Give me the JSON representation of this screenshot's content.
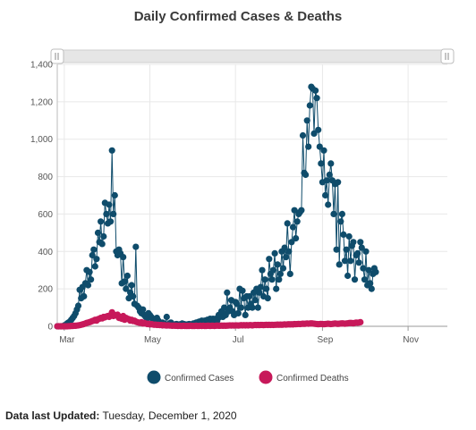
{
  "footer": {
    "label": "Data last Updated:",
    "value": "Tuesday, December 1, 2020"
  },
  "colors": {
    "cases": "#0f4c6b",
    "deaths": "#c7195a",
    "slider": "#e6e6e6",
    "grid": "#e8e8e8"
  },
  "chart_data": {
    "type": "line",
    "title": "Daily Confirmed Cases & Deaths",
    "xlabel": "",
    "ylabel": "",
    "x_start": "2020-02-25",
    "xlim": [
      "2020-02-25",
      "2020-11-29"
    ],
    "ylim": [
      0,
      1400
    ],
    "y_ticks": [
      0,
      200,
      400,
      600,
      800,
      1000,
      1200,
      1400
    ],
    "y_tick_labels": [
      "0",
      "200",
      "400",
      "600",
      "800",
      "1,000",
      "1,200",
      "1,400"
    ],
    "x_ticks": [
      {
        "date": "2020-03-01",
        "label": "Mar"
      },
      {
        "date": "2020-05-01",
        "label": "May"
      },
      {
        "date": "2020-07-01",
        "label": "Jul"
      },
      {
        "date": "2020-09-01",
        "label": "Sep"
      },
      {
        "date": "2020-11-01",
        "label": "Nov"
      }
    ],
    "grid": true,
    "legend_position": "bottom",
    "range_slider": true,
    "series": [
      {
        "name": "Confirmed Cases",
        "values": [
          0,
          0,
          0,
          0,
          0,
          5,
          8,
          15,
          20,
          25,
          35,
          45,
          55,
          70,
          90,
          110,
          195,
          150,
          210,
          160,
          230,
          300,
          220,
          290,
          250,
          380,
          410,
          320,
          360,
          500,
          450,
          560,
          440,
          480,
          660,
          600,
          550,
          650,
          560,
          940,
          600,
          700,
          400,
          380,
          410,
          390,
          230,
          370,
          240,
          200,
          270,
          150,
          180,
          220,
          160,
          120,
          425,
          110,
          100,
          80,
          70,
          90,
          60,
          50,
          40,
          70,
          60,
          50,
          40,
          30,
          25,
          45,
          30,
          20,
          15,
          20,
          15,
          10,
          50,
          10,
          10,
          20,
          10,
          8,
          10,
          12,
          8,
          10,
          10,
          15,
          12,
          10,
          8,
          10,
          12,
          10,
          10,
          15,
          15,
          20,
          20,
          25,
          20,
          30,
          25,
          30,
          20,
          35,
          25,
          40,
          30,
          40,
          35,
          40,
          30,
          60,
          50,
          80,
          50,
          100,
          60,
          180,
          80,
          100,
          140,
          80,
          60,
          130,
          120,
          70,
          200,
          100,
          190,
          150,
          60,
          160,
          100,
          160,
          120,
          100,
          180,
          140,
          200,
          100,
          180,
          210,
          300,
          160,
          250,
          200,
          150,
          360,
          280,
          250,
          300,
          390,
          200,
          330,
          250,
          280,
          400,
          310,
          420,
          370,
          550,
          400,
          280,
          450,
          530,
          620,
          470,
          560,
          600,
          610,
          620,
          1020,
          820,
          810,
          1100,
          960,
          1180,
          1280,
          1270,
          1030,
          1260,
          1220,
          1050,
          960,
          870,
          770,
          940,
          700,
          780,
          650,
          810,
          870,
          780,
          600,
          760,
          410,
          770,
          330,
          560,
          600,
          490,
          350,
          410,
          270,
          480,
          350,
          430,
          450,
          250,
          380,
          390,
          340,
          450,
          420,
          310,
          250,
          400,
          220,
          300,
          230,
          200,
          280,
          310,
          290
        ]
      },
      {
        "name": "Confirmed Deaths",
        "values": [
          0,
          0,
          0,
          0,
          0,
          0,
          0,
          0,
          1,
          1,
          2,
          2,
          3,
          3,
          4,
          5,
          6,
          8,
          10,
          12,
          15,
          18,
          20,
          22,
          25,
          28,
          30,
          35,
          30,
          38,
          40,
          45,
          42,
          50,
          48,
          52,
          55,
          50,
          60,
          75,
          55,
          60,
          58,
          62,
          45,
          50,
          40,
          55,
          35,
          45,
          40,
          38,
          30,
          35,
          28,
          30,
          25,
          22,
          20,
          18,
          22,
          15,
          18,
          15,
          12,
          14,
          10,
          12,
          10,
          8,
          9,
          7,
          8,
          6,
          7,
          5,
          6,
          5,
          4,
          5,
          4,
          4,
          3,
          4,
          3,
          3,
          2,
          3,
          2,
          2,
          3,
          2,
          2,
          2,
          2,
          3,
          2,
          2,
          2,
          3,
          2,
          2,
          3,
          2,
          3,
          2,
          2,
          3,
          3,
          2,
          3,
          3,
          2,
          3,
          4,
          3,
          3,
          4,
          3,
          4,
          3,
          4,
          4,
          5,
          4,
          5,
          4,
          5,
          5,
          4,
          5,
          6,
          5,
          6,
          5,
          6,
          5,
          6,
          6,
          5,
          6,
          7,
          6,
          7,
          6,
          7,
          7,
          6,
          7,
          8,
          7,
          8,
          7,
          8,
          7,
          8,
          8,
          9,
          8,
          9,
          8,
          9,
          10,
          9,
          10,
          11,
          10,
          11,
          10,
          12,
          11,
          12,
          13,
          12,
          13,
          14,
          13,
          14,
          15,
          14,
          15,
          16,
          15,
          14,
          13,
          12,
          11,
          12,
          13,
          12,
          11,
          12,
          13,
          14,
          13,
          12,
          13,
          14,
          15,
          14,
          13,
          14,
          15,
          16,
          15,
          14,
          15,
          16,
          17,
          18,
          17,
          16,
          18,
          20,
          19,
          20,
          22
        ]
      }
    ]
  }
}
